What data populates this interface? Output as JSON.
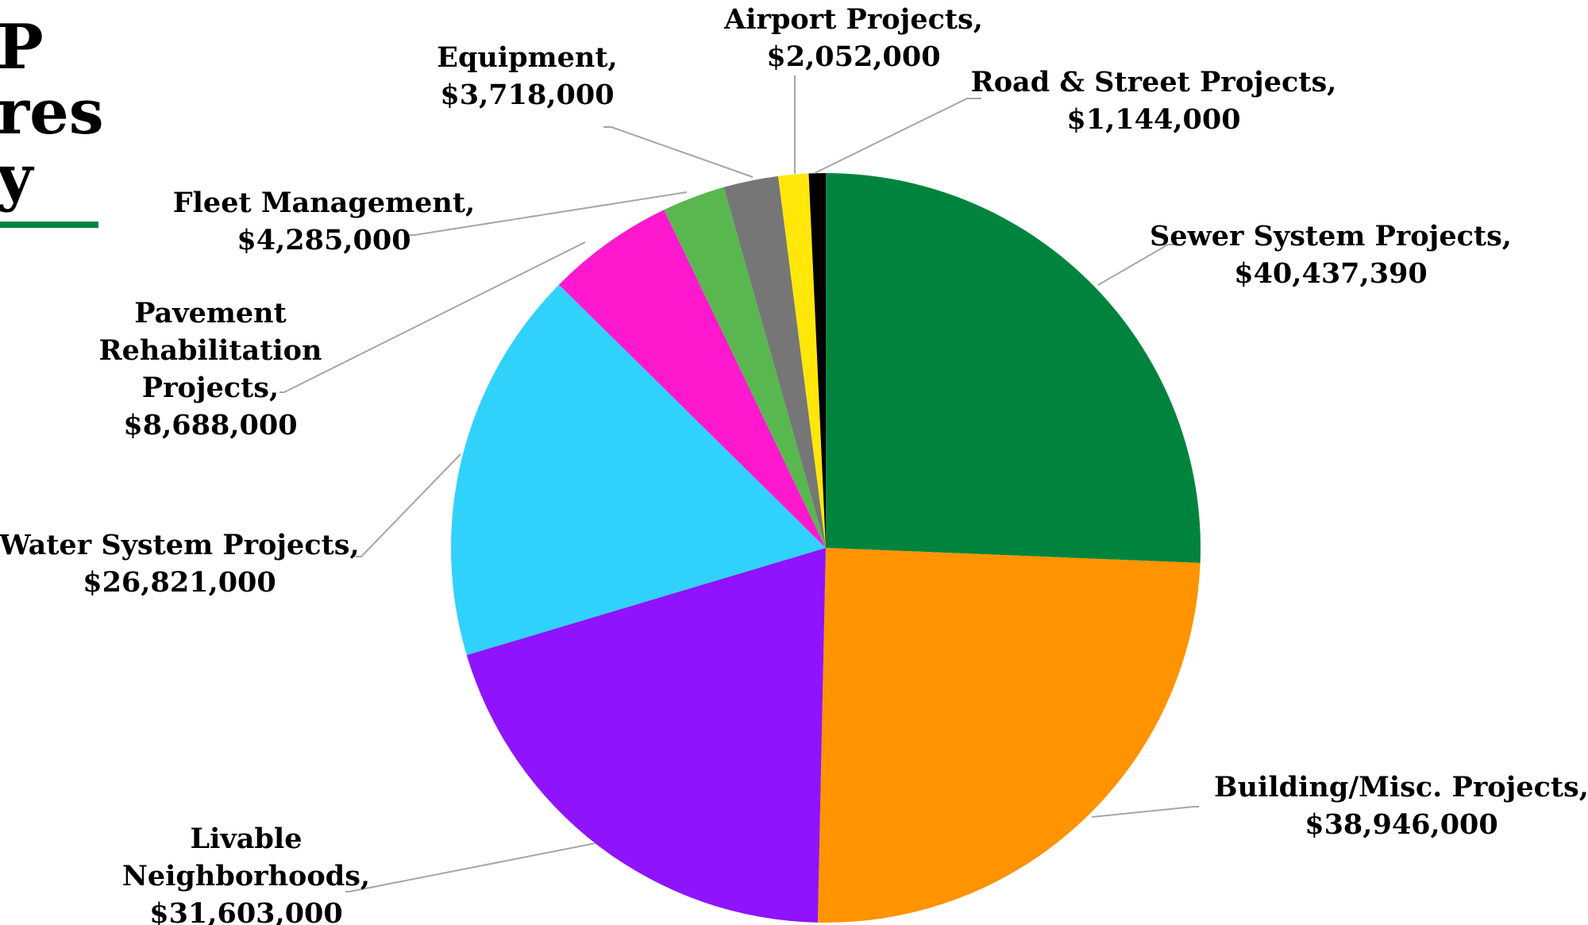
{
  "title_fragments": [
    "P",
    "res",
    "y"
  ],
  "colors": {
    "accent_rule": "#00843d",
    "leader_line": "#a6a6a6"
  },
  "chart_data": {
    "type": "pie",
    "start_angle_deg": 0,
    "direction": "clockwise",
    "slices": [
      {
        "label": "Sewer System Projects,",
        "value_text": "$40,437,390",
        "value": 40437390,
        "color": "#00843d"
      },
      {
        "label": "Building/Misc. Projects,",
        "value_text": "$38,946,000",
        "value": 38946000,
        "color": "#ff9300"
      },
      {
        "label": "Livable Neighborhoods,",
        "value_text": "$31,603,000",
        "value": 31603000,
        "color": "#9013fe"
      },
      {
        "label": "Water System Projects,",
        "value_text": "$26,821,000",
        "value": 26821000,
        "color": "#30d2fc"
      },
      {
        "label": "Pavement Rehabilitation Projects,",
        "value_text": "$8,688,000",
        "value": 8688000,
        "color": "#ff19ce"
      },
      {
        "label": "Fleet Management,",
        "value_text": "$4,285,000",
        "value": 4285000,
        "color": "#58b84f"
      },
      {
        "label": "Equipment,",
        "value_text": "$3,718,000",
        "value": 3718000,
        "color": "#767676"
      },
      {
        "label": "Airport Projects,",
        "value_text": "$2,052,000",
        "value": 2052000,
        "color": "#ffe70a"
      },
      {
        "label": "Road & Street Projects,",
        "value_text": "$1,144,000",
        "value": 1144000,
        "color": "#000000"
      }
    ]
  }
}
